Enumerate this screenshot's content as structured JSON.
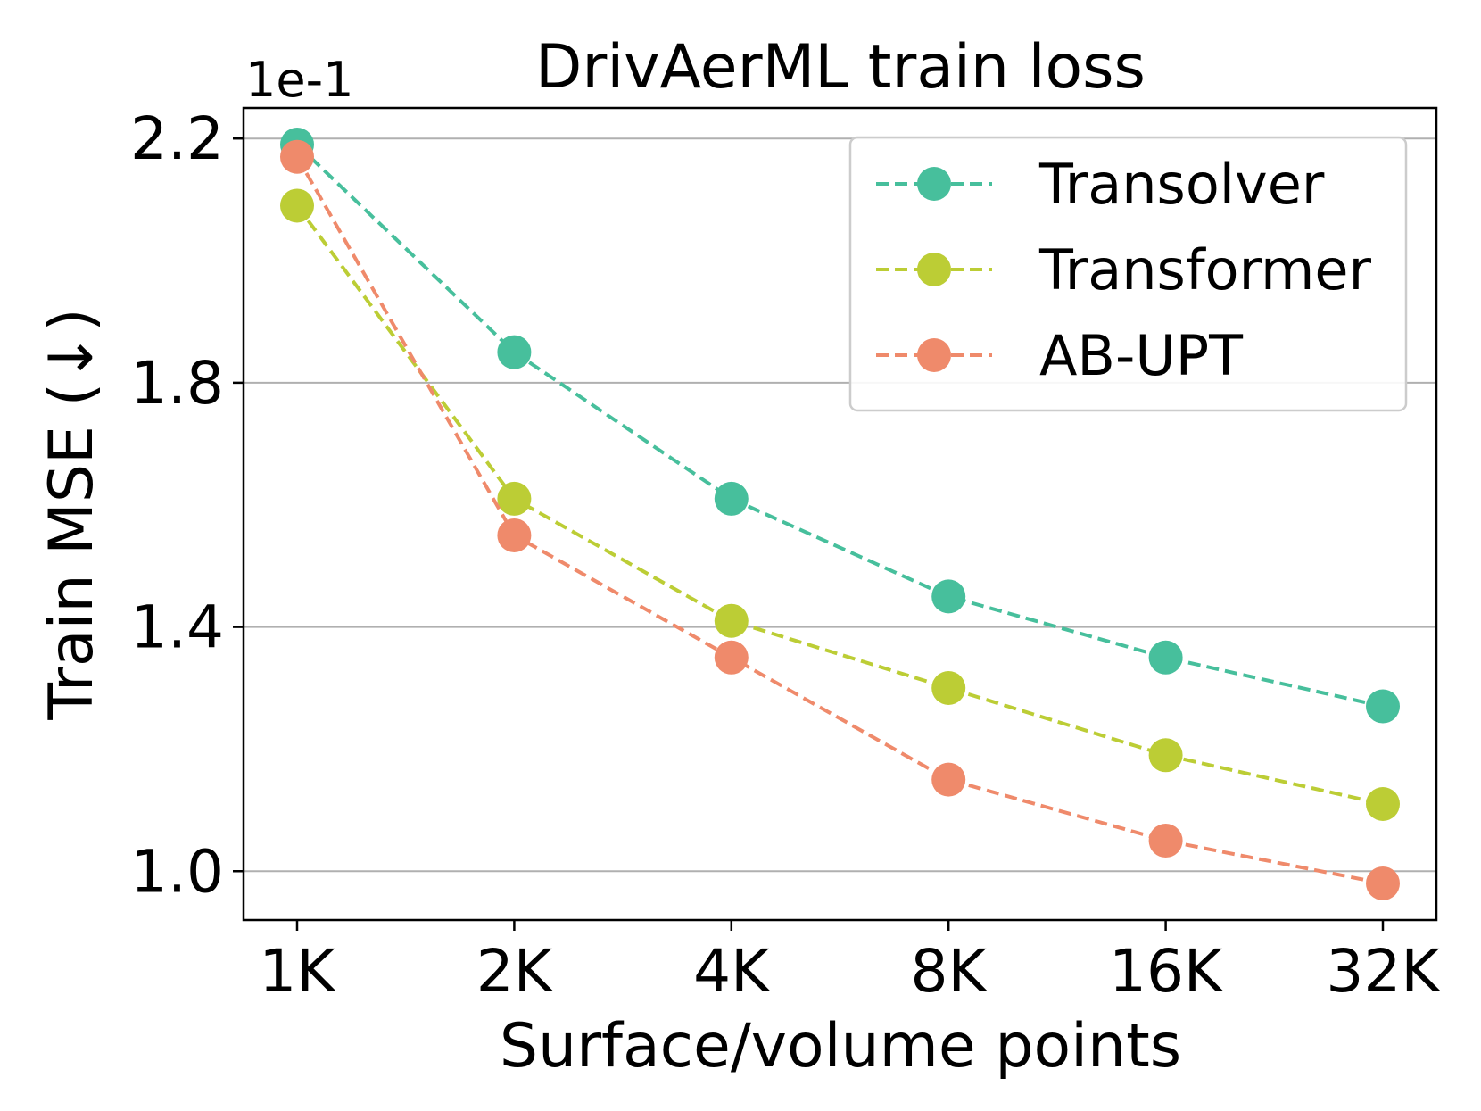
{
  "chart_data": {
    "type": "line",
    "title": "DrivAerML train loss",
    "xlabel": "Surface/volume points",
    "ylabel": "Train MSE (↓)",
    "y_scale_label": "1e-1",
    "categories": [
      "1K",
      "2K",
      "4K",
      "8K",
      "16K",
      "32K"
    ],
    "ylim": [
      0.92,
      2.25
    ],
    "yticks": [
      1.0,
      1.4,
      1.8,
      2.2
    ],
    "ytick_labels": [
      "1.0",
      "1.4",
      "1.8",
      "2.2"
    ],
    "grid": "horizontal",
    "legend_position": "top-right",
    "series": [
      {
        "name": "Transolver",
        "color": "#47BF9C",
        "values": [
          2.19,
          1.85,
          1.61,
          1.45,
          1.35,
          1.27
        ]
      },
      {
        "name": "Transformer",
        "color": "#BCCD35",
        "values": [
          2.09,
          1.61,
          1.41,
          1.3,
          1.19,
          1.11
        ]
      },
      {
        "name": "AB-UPT",
        "color": "#EF8A6B",
        "values": [
          2.17,
          1.55,
          1.35,
          1.15,
          1.05,
          0.98
        ]
      }
    ]
  }
}
